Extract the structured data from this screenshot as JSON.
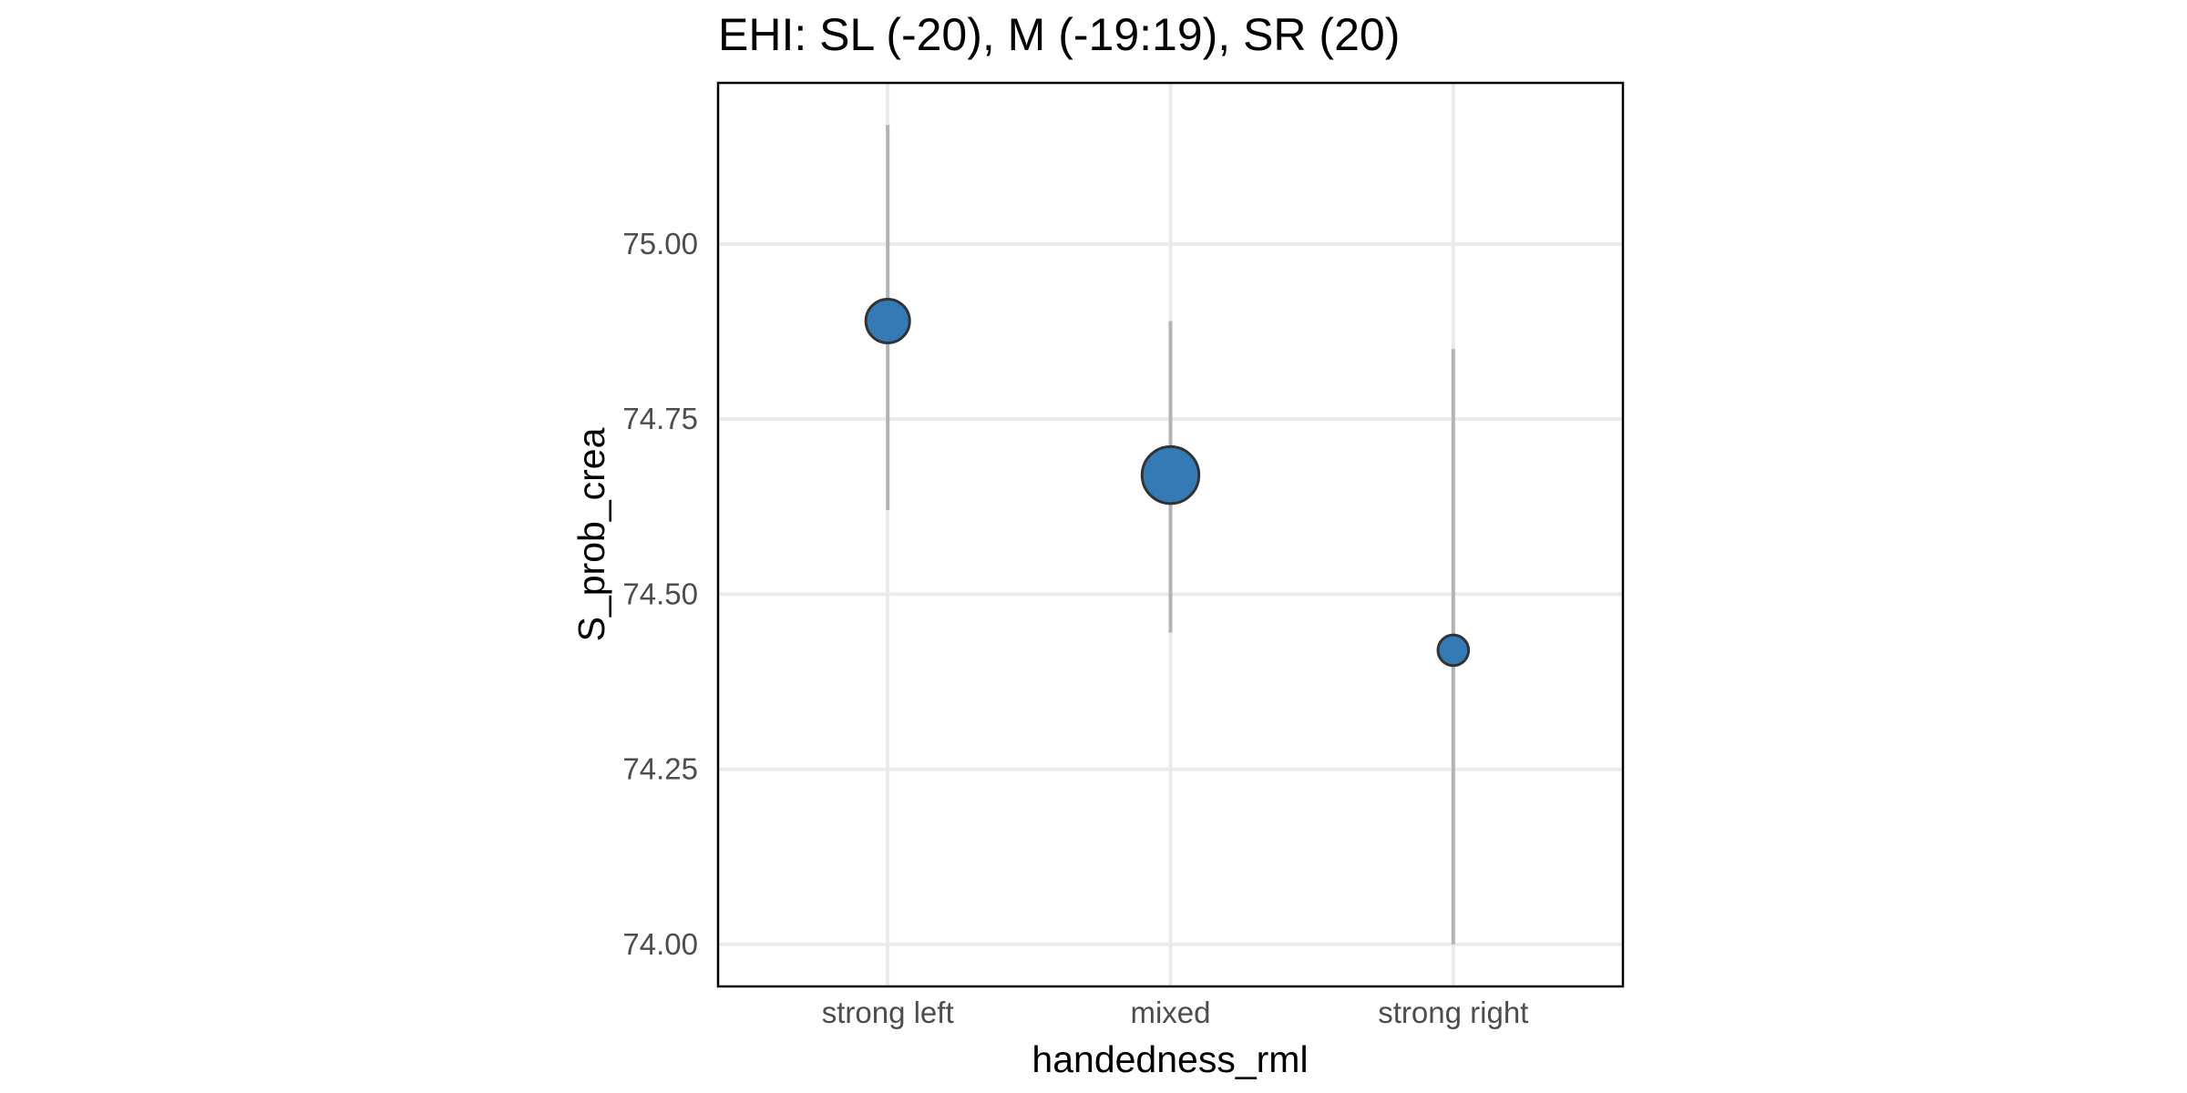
{
  "chart_data": {
    "type": "scatter",
    "title": "EHI: SL (-20), M (-19:19), SR (20)",
    "xlabel": "handedness_rml",
    "ylabel": "S_prob_crea",
    "categories": [
      "strong left",
      "mixed",
      "strong right"
    ],
    "values": [
      74.89,
      74.67,
      74.42
    ],
    "error_low": [
      74.62,
      74.445,
      74.0
    ],
    "error_high": [
      75.17,
      74.89,
      74.85
    ],
    "relative_point_size": [
      1.0,
      1.3,
      0.7
    ],
    "ylim": [
      73.94,
      75.23
    ],
    "yticks": [
      74.0,
      74.25,
      74.5,
      74.75,
      75.0
    ],
    "ytick_labels": [
      "74.00",
      "74.25",
      "74.50",
      "74.75",
      "75.00"
    ],
    "grid": true,
    "point_color": "#337ab7",
    "point_outline_color": "#333333",
    "errorbar_color": "#b3b3b3",
    "grid_color": "#ebebeb"
  }
}
